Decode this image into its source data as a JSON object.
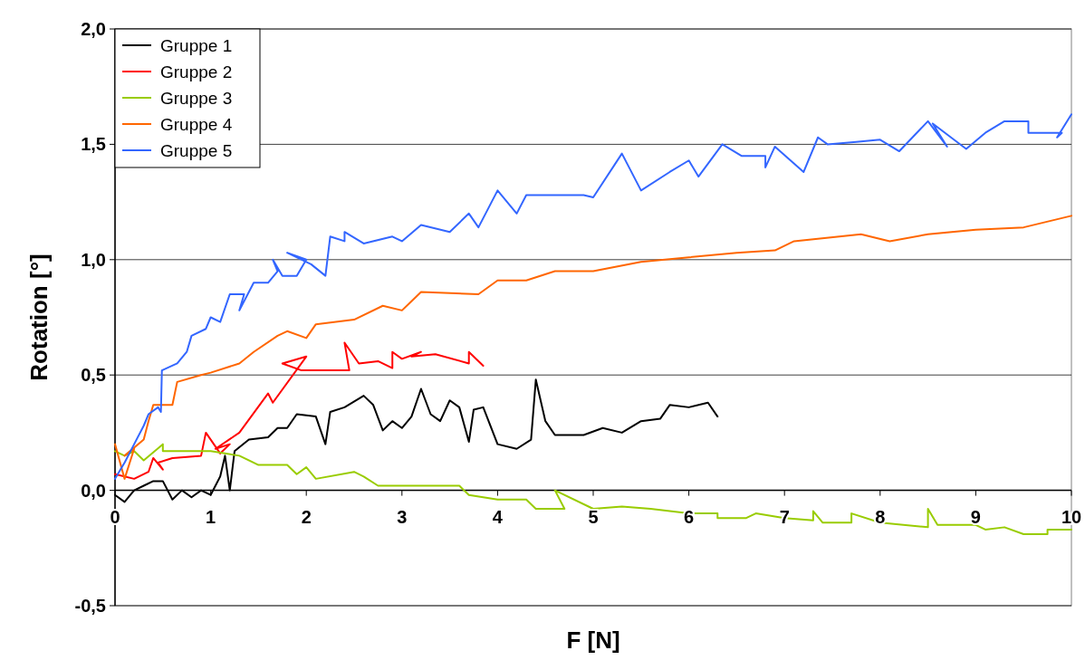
{
  "chart_data": {
    "type": "line",
    "xlabel": "F [N]",
    "ylabel": "Rotation [°]",
    "xlim": [
      0,
      10
    ],
    "xticks": [
      0,
      1,
      2,
      3,
      4,
      5,
      6,
      7,
      8,
      9,
      10
    ],
    "ylim": [
      -0.5,
      2
    ],
    "yticks": [
      {
        "value": -0.5,
        "label": "-0,5"
      },
      {
        "value": 0,
        "label": "0,0"
      },
      {
        "value": 0.5,
        "label": "0,5"
      },
      {
        "value": 1,
        "label": "1,0"
      },
      {
        "value": 1.5,
        "label": "1,5"
      },
      {
        "value": 2,
        "label": "2,0"
      }
    ],
    "grid": "y",
    "legend": "top left",
    "marker": "none",
    "line_style": "solid",
    "series": [
      {
        "name": "Gruppe 1",
        "color": "#000000",
        "x": [
          0,
          0.1,
          0.2,
          0.3,
          0.4,
          0.5,
          0.6,
          0.7,
          0.8,
          0.9,
          1.0,
          1.1,
          1.15,
          1.2,
          1.25,
          1.4,
          1.6,
          1.7,
          1.8,
          1.9,
          2.1,
          2.2,
          2.25,
          2.4,
          2.6,
          2.7,
          2.8,
          2.9,
          3.0,
          3.1,
          3.2,
          3.3,
          3.4,
          3.5,
          3.6,
          3.7,
          3.75,
          3.85,
          4.0,
          4.2,
          4.35,
          4.4,
          4.5,
          4.6,
          4.9,
          5.1,
          5.3,
          5.5,
          5.7,
          5.8,
          6.0,
          6.2,
          6.3
        ],
        "values": [
          -0.02,
          -0.05,
          0.0,
          0.02,
          0.04,
          0.04,
          -0.04,
          0.0,
          -0.03,
          0.0,
          -0.02,
          0.06,
          0.15,
          0.0,
          0.17,
          0.22,
          0.23,
          0.27,
          0.27,
          0.33,
          0.32,
          0.2,
          0.34,
          0.36,
          0.41,
          0.37,
          0.26,
          0.3,
          0.27,
          0.32,
          0.44,
          0.33,
          0.3,
          0.39,
          0.36,
          0.21,
          0.35,
          0.36,
          0.2,
          0.18,
          0.22,
          0.48,
          0.3,
          0.24,
          0.24,
          0.27,
          0.25,
          0.3,
          0.31,
          0.37,
          0.36,
          0.38,
          0.32
        ]
      },
      {
        "name": "Gruppe 2",
        "color": "#ff0000",
        "x": [
          0,
          0.2,
          0.35,
          0.4,
          0.5,
          0.45,
          0.6,
          0.9,
          0.95,
          1.1,
          1.2,
          1.05,
          1.3,
          1.6,
          1.65,
          2.0,
          1.75,
          1.95,
          2.2,
          2.45,
          2.4,
          2.55,
          2.75,
          2.9,
          2.9,
          3.0,
          3.2,
          3.1,
          3.35,
          3.7,
          3.7,
          3.85
        ],
        "values": [
          0.07,
          0.05,
          0.08,
          0.14,
          0.09,
          0.12,
          0.14,
          0.15,
          0.25,
          0.16,
          0.2,
          0.18,
          0.25,
          0.42,
          0.38,
          0.58,
          0.55,
          0.52,
          0.52,
          0.52,
          0.64,
          0.55,
          0.56,
          0.53,
          0.6,
          0.57,
          0.6,
          0.58,
          0.59,
          0.55,
          0.6,
          0.54
        ]
      },
      {
        "name": "Gruppe 3",
        "color": "#99cc00",
        "x": [
          0,
          0.1,
          0.2,
          0.3,
          0.5,
          0.5,
          1.0,
          1.3,
          1.5,
          1.8,
          1.9,
          2.0,
          2.1,
          2.5,
          2.6,
          2.75,
          2.9,
          3.4,
          3.6,
          3.7,
          4.0,
          4.3,
          4.4,
          4.7,
          4.6,
          5.0,
          5.3,
          5.6,
          6.0,
          6.3,
          6.3,
          6.6,
          6.7,
          7.0,
          7.3,
          7.3,
          7.4,
          7.7,
          7.7,
          8.0,
          8.5,
          8.5,
          8.6,
          9.0,
          9.1,
          9.3,
          9.5,
          9.75,
          9.75,
          10.0
        ],
        "values": [
          0.17,
          0.15,
          0.17,
          0.13,
          0.2,
          0.17,
          0.17,
          0.15,
          0.11,
          0.11,
          0.07,
          0.1,
          0.05,
          0.08,
          0.06,
          0.02,
          0.02,
          0.02,
          0.02,
          -0.02,
          -0.04,
          -0.04,
          -0.08,
          -0.08,
          0.0,
          -0.08,
          -0.07,
          -0.08,
          -0.1,
          -0.1,
          -0.12,
          -0.12,
          -0.1,
          -0.12,
          -0.13,
          -0.09,
          -0.14,
          -0.14,
          -0.1,
          -0.14,
          -0.16,
          -0.08,
          -0.15,
          -0.15,
          -0.17,
          -0.16,
          -0.19,
          -0.19,
          -0.17,
          -0.17
        ]
      },
      {
        "name": "Gruppe 4",
        "color": "#ff6600",
        "x": [
          0,
          0.1,
          0.2,
          0.1,
          0.3,
          0.35,
          0.4,
          0.6,
          0.65,
          0.9,
          1.0,
          1.3,
          1.45,
          1.7,
          1.8,
          2.0,
          2.1,
          2.5,
          2.8,
          3.0,
          3.1,
          3.2,
          3.8,
          4.0,
          4.3,
          4.6,
          5.0,
          5.5,
          6.0,
          6.5,
          6.9,
          7.1,
          7.8,
          8.1,
          8.5,
          9.0,
          9.5,
          10.0
        ],
        "values": [
          0.2,
          0.05,
          0.18,
          0.15,
          0.22,
          0.3,
          0.37,
          0.37,
          0.47,
          0.5,
          0.51,
          0.55,
          0.6,
          0.67,
          0.69,
          0.66,
          0.72,
          0.74,
          0.8,
          0.78,
          0.82,
          0.86,
          0.85,
          0.91,
          0.91,
          0.95,
          0.95,
          0.99,
          1.01,
          1.03,
          1.04,
          1.08,
          1.11,
          1.08,
          1.11,
          1.13,
          1.14,
          1.19
        ]
      },
      {
        "name": "Gruppe 5",
        "color": "#3366ff",
        "x": [
          0,
          0.1,
          0.2,
          0.3,
          0.35,
          0.45,
          0.48,
          0.49,
          0.65,
          0.75,
          0.8,
          0.95,
          1.0,
          1.1,
          1.2,
          1.35,
          1.3,
          1.45,
          1.6,
          1.7,
          1.65,
          1.75,
          1.9,
          2.0,
          1.8,
          2.05,
          2.2,
          2.25,
          2.4,
          2.4,
          2.6,
          2.9,
          3.0,
          3.2,
          3.5,
          3.7,
          3.8,
          4.0,
          4.2,
          4.3,
          4.6,
          4.9,
          5.0,
          5.3,
          5.5,
          5.8,
          6.0,
          6.1,
          6.35,
          6.55,
          6.8,
          6.8,
          6.9,
          7.2,
          7.35,
          7.45,
          7.75,
          8.0,
          8.2,
          8.5,
          8.7,
          8.55,
          8.9,
          9.1,
          9.3,
          9.55,
          9.55,
          9.9,
          9.85,
          10.0
        ],
        "values": [
          0.05,
          0.12,
          0.2,
          0.28,
          0.33,
          0.36,
          0.34,
          0.52,
          0.55,
          0.6,
          0.67,
          0.7,
          0.75,
          0.73,
          0.85,
          0.85,
          0.78,
          0.9,
          0.9,
          0.95,
          1.0,
          0.93,
          0.93,
          1.0,
          1.03,
          0.98,
          0.93,
          1.1,
          1.08,
          1.12,
          1.07,
          1.1,
          1.08,
          1.15,
          1.12,
          1.2,
          1.14,
          1.3,
          1.2,
          1.28,
          1.28,
          1.28,
          1.27,
          1.46,
          1.3,
          1.38,
          1.43,
          1.36,
          1.5,
          1.45,
          1.45,
          1.4,
          1.49,
          1.38,
          1.53,
          1.5,
          1.51,
          1.52,
          1.47,
          1.6,
          1.49,
          1.59,
          1.48,
          1.55,
          1.6,
          1.6,
          1.55,
          1.55,
          1.53,
          1.63
        ]
      }
    ]
  }
}
